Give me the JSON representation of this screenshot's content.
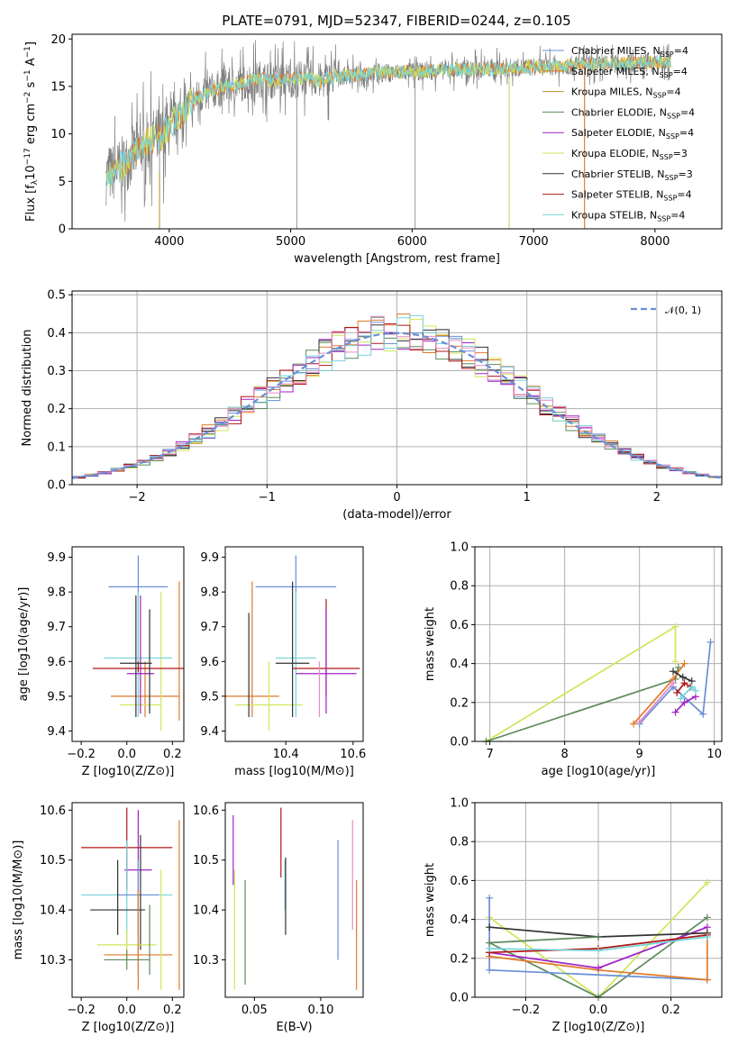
{
  "title": "PLATE=0791, MJD=52347, FIBERID=0244, z=0.105",
  "colors": {
    "chabrier_miles": "#6a8fd6",
    "salpeter_miles": "#e07a2a",
    "kroupa_miles": "#b5922e",
    "chabrier_elodie": "#5e8a5e",
    "salpeter_elodie": "#a020c8",
    "kroupa_elodie": "#cfe65a",
    "chabrier_stelib": "#333333",
    "salpeter_stelib": "#b01616",
    "kroupa_stelib": "#74d3dc",
    "pink": "#e58ac8",
    "data": "#7f7f7f",
    "grid": "#b0b0b0"
  },
  "chart_data": [
    {
      "type": "line",
      "panel": "spectrum",
      "xlabel": "wavelength [Angstrom, rest frame]",
      "ylabel": "Flux [f_λ 10^-17 erg cm^-2 s^-1 A^-1]",
      "xlim": [
        3200,
        8550
      ],
      "ylim": [
        0,
        20.5
      ],
      "xticks": [
        "4000",
        "5000",
        "6000",
        "7000",
        "8000"
      ],
      "yticks": [
        "0",
        "5",
        "10",
        "15",
        "20"
      ],
      "grid": false,
      "legend_position": "right",
      "legend": [
        {
          "label": "Chabrier MILES, N",
          "sub": "SSP",
          "value": "=4",
          "color": "chabrier_miles"
        },
        {
          "label": "Salpeter MILES, N",
          "sub": "SSP",
          "value": "=4",
          "color": "salpeter_miles"
        },
        {
          "label": "Kroupa MILES, N",
          "sub": "SSP",
          "value": "=4",
          "color": "kroupa_miles"
        },
        {
          "label": "Chabrier ELODIE, N",
          "sub": "SSP",
          "value": "=4",
          "color": "chabrier_elodie"
        },
        {
          "label": "Salpeter ELODIE, N",
          "sub": "SSP",
          "value": "=4",
          "color": "salpeter_elodie"
        },
        {
          "label": "Kroupa ELODIE, N",
          "sub": "SSP",
          "value": "=3",
          "color": "kroupa_elodie"
        },
        {
          "label": "Chabrier STELIB, N",
          "sub": "SSP",
          "value": "=3",
          "color": "chabrier_stelib"
        },
        {
          "label": "Salpeter STELIB, N",
          "sub": "SSP",
          "value": "=4",
          "color": "salpeter_stelib"
        },
        {
          "label": "Kroupa STELIB, N",
          "sub": "SSP",
          "value": "=4",
          "color": "kroupa_stelib"
        }
      ],
      "model_curve": {
        "x": [
          3480,
          3550,
          3650,
          3750,
          3850,
          3950,
          4050,
          4150,
          4250,
          4350,
          4450,
          4550,
          4650,
          4750,
          4850,
          4950,
          5050,
          5150,
          5250,
          5350,
          5500,
          5700,
          5900,
          6100,
          6300,
          6500,
          6700,
          6900,
          7100,
          7300,
          7500,
          7700,
          7900,
          8100
        ],
        "y": [
          5.6,
          6.0,
          7.0,
          8.5,
          9.5,
          9.8,
          11.5,
          13.0,
          14.0,
          14.5,
          15.0,
          15.2,
          15.5,
          15.8,
          15.6,
          15.7,
          15.8,
          16.0,
          15.5,
          16.0,
          16.2,
          16.4,
          16.5,
          16.6,
          16.7,
          16.8,
          16.9,
          17.0,
          17.1,
          17.2,
          17.3,
          17.4,
          17.5,
          17.6
        ]
      },
      "data_spikes": [
        {
          "x": 3920,
          "y_low": 0.0
        },
        {
          "x": 5050,
          "y_low": 0.0
        },
        {
          "x": 6025,
          "y_low": 0.0
        },
        {
          "x": 6800,
          "y_low": 0.0
        },
        {
          "x": 7420,
          "y_low": 0.0
        }
      ]
    },
    {
      "type": "step",
      "panel": "residual_histogram",
      "xlabel": "(data-model)/error",
      "ylabel": "Normed distribution",
      "xlim": [
        -2.5,
        2.5
      ],
      "ylim": [
        0,
        0.51
      ],
      "xticks": [
        "−2",
        "−1",
        "0",
        "1",
        "2"
      ],
      "yticks": [
        "0.0",
        "0.1",
        "0.2",
        "0.3",
        "0.4",
        "0.5"
      ],
      "grid": true,
      "legend_position": "top-right",
      "legend": [
        {
          "label": "𝒩(0, 1)",
          "color": "chabrier_miles",
          "style": "dashed"
        }
      ],
      "bin_edges_start": -2.5,
      "bin_width": 0.1,
      "bin_count": 50,
      "series_colors": [
        "chabrier_miles",
        "salpeter_miles",
        "chabrier_elodie",
        "salpeter_elodie",
        "kroupa_elodie",
        "chabrier_stelib",
        "salpeter_stelib",
        "kroupa_stelib",
        "pink"
      ]
    },
    {
      "type": "errorbar",
      "panel": "age_vs_Z",
      "xlabel": "Z [log10(Z/Z⊙)]",
      "ylabel": "age  [log10(age/yr)]",
      "xlim": [
        -0.24,
        0.25
      ],
      "ylim": [
        9.37,
        9.93
      ],
      "xticks": [
        "−0.2",
        "0.0",
        "0.2"
      ],
      "yticks": [
        "9.4",
        "9.5",
        "9.6",
        "9.7",
        "9.8",
        "9.9"
      ],
      "points": [
        {
          "x": 0.05,
          "y": 9.815,
          "xerr": 0.13,
          "ylo": 9.6,
          "yhi": 9.905,
          "color": "chabrier_miles"
        },
        {
          "x": 0.08,
          "y": 9.5,
          "xerr": 0.15,
          "ylo": 9.44,
          "yhi": 9.6,
          "color": "salpeter_miles"
        },
        {
          "x": 0.23,
          "y": 9.62,
          "xerr": 0.0,
          "ylo": 9.43,
          "yhi": 9.83,
          "color": "salpeter_miles"
        },
        {
          "x": 0.06,
          "y": 9.475,
          "xerr": 0.09,
          "ylo": 9.45,
          "yhi": 9.6,
          "color": "kroupa_elodie"
        },
        {
          "x": 0.15,
          "y": 9.6,
          "xerr": 0.0,
          "ylo": 9.4,
          "yhi": 9.8,
          "color": "kroupa_elodie"
        },
        {
          "x": 0.05,
          "y": 9.61,
          "xerr": 0.15,
          "ylo": 9.44,
          "yhi": 9.8,
          "color": "kroupa_stelib"
        },
        {
          "x": 0.05,
          "y": 9.58,
          "xerr": 0.2,
          "ylo": 9.57,
          "yhi": 9.6,
          "color": "salpeter_stelib"
        },
        {
          "x": 0.06,
          "y": 9.565,
          "xerr": 0.06,
          "ylo": 9.45,
          "yhi": 9.79,
          "color": "salpeter_elodie"
        },
        {
          "x": 0.04,
          "y": 9.595,
          "xerr": 0.07,
          "ylo": 9.44,
          "yhi": 9.79,
          "color": "chabrier_stelib"
        },
        {
          "x": 0.1,
          "y": 9.6,
          "xerr": 0.0,
          "ylo": 9.45,
          "yhi": 9.75,
          "color": "chabrier_stelib"
        }
      ]
    },
    {
      "type": "errorbar",
      "panel": "age_vs_mass",
      "xlabel": "mass [log10(M/M⊙)]",
      "xlim": [
        10.22,
        10.63
      ],
      "ylim": [
        9.37,
        9.93
      ],
      "xticks": [
        "10.4",
        "10.6"
      ],
      "yticks": [
        "9.4",
        "9.5",
        "9.6",
        "9.7",
        "9.8",
        "9.9"
      ],
      "points": [
        {
          "x": 10.43,
          "y": 9.815,
          "xerr": 0.12,
          "ylo": 9.6,
          "yhi": 9.905,
          "color": "chabrier_miles"
        },
        {
          "x": 10.3,
          "y": 9.5,
          "xerr": 0.08,
          "ylo": 9.44,
          "yhi": 9.83,
          "color": "salpeter_miles"
        },
        {
          "x": 10.35,
          "y": 9.475,
          "xerr": 0.1,
          "ylo": 9.4,
          "yhi": 9.6,
          "color": "kroupa_elodie"
        },
        {
          "x": 10.43,
          "y": 9.61,
          "xerr": 0.06,
          "ylo": 9.44,
          "yhi": 9.8,
          "color": "kroupa_stelib"
        },
        {
          "x": 10.52,
          "y": 9.58,
          "xerr": 0.1,
          "ylo": 9.5,
          "yhi": 9.78,
          "color": "salpeter_stelib"
        },
        {
          "x": 10.52,
          "y": 9.565,
          "xerr": 0.09,
          "ylo": 9.45,
          "yhi": 9.75,
          "color": "salpeter_elodie"
        },
        {
          "x": 10.42,
          "y": 9.595,
          "xerr": 0.05,
          "ylo": 9.44,
          "yhi": 9.83,
          "color": "chabrier_stelib"
        },
        {
          "x": 10.29,
          "y": 9.6,
          "xerr": 0.0,
          "ylo": 9.44,
          "yhi": 9.74,
          "color": "chabrier_stelib"
        },
        {
          "x": 10.5,
          "y": 9.5,
          "xerr": 0.0,
          "ylo": 9.44,
          "yhi": 9.6,
          "color": "pink"
        }
      ]
    },
    {
      "type": "line",
      "panel": "weight_vs_age",
      "xlabel": "age  [log10(age/yr)]",
      "ylabel": "mass weight",
      "xlim": [
        6.8,
        10.1
      ],
      "ylim": [
        0,
        1.0
      ],
      "xticks": [
        "7",
        "8",
        "9",
        "10"
      ],
      "yticks": [
        "0.0",
        "0.2",
        "0.4",
        "0.6",
        "0.8",
        "1.0"
      ],
      "grid": true,
      "series": [
        {
          "color": "kroupa_elodie",
          "x": [
            6.95,
            9.48,
            9.48
          ],
          "y": [
            0.0,
            0.59,
            0.41
          ]
        },
        {
          "color": "chabrier_elodie",
          "x": [
            6.95,
            9.48,
            9.52
          ],
          "y": [
            0.0,
            0.32,
            0.38
          ]
        },
        {
          "color": "chabrier_miles",
          "x": [
            9.0,
            9.45,
            9.85,
            9.95
          ],
          "y": [
            0.09,
            0.28,
            0.14,
            0.51
          ]
        },
        {
          "color": "salpeter_miles",
          "x": [
            8.92,
            9.45,
            9.6
          ],
          "y": [
            0.09,
            0.32,
            0.4
          ]
        },
        {
          "color": "salpeter_elodie",
          "x": [
            9.48,
            9.6,
            9.75
          ],
          "y": [
            0.15,
            0.2,
            0.23
          ]
        },
        {
          "color": "chabrier_stelib",
          "x": [
            9.45,
            9.58,
            9.7
          ],
          "y": [
            0.36,
            0.33,
            0.31
          ]
        },
        {
          "color": "salpeter_stelib",
          "x": [
            9.5,
            9.6,
            9.68
          ],
          "y": [
            0.25,
            0.3,
            0.28
          ]
        },
        {
          "color": "pink",
          "x": [
            9.0,
            9.45
          ],
          "y": [
            0.1,
            0.3
          ]
        },
        {
          "color": "kroupa_stelib",
          "x": [
            9.55,
            9.7,
            9.75
          ],
          "y": [
            0.22,
            0.28,
            0.26
          ]
        }
      ]
    },
    {
      "type": "errorbar",
      "panel": "mass_vs_Z",
      "xlabel": "Z [log10(Z/Z⊙)]",
      "ylabel": "mass [log10(M/M⊙)]",
      "xlim": [
        -0.24,
        0.25
      ],
      "ylim": [
        10.225,
        10.615
      ],
      "xticks": [
        "−0.2",
        "0.0",
        "0.2"
      ],
      "yticks": [
        "10.3",
        "10.4",
        "10.5",
        "10.6"
      ],
      "points": [
        {
          "x": 0.0,
          "y": 10.525,
          "xerr": 0.2,
          "ylo": 10.44,
          "yhi": 10.605,
          "color": "salpeter_stelib"
        },
        {
          "x": 0.05,
          "y": 10.48,
          "xerr": 0.06,
          "ylo": 10.35,
          "yhi": 10.6,
          "color": "salpeter_elodie"
        },
        {
          "x": 0.0,
          "y": 10.43,
          "xerr": 0.2,
          "ylo": 10.32,
          "yhi": 10.54,
          "color": "kroupa_stelib"
        },
        {
          "x": 0.05,
          "y": 10.43,
          "xerr": 0.09,
          "ylo": 10.27,
          "yhi": 10.5,
          "color": "chabrier_miles"
        },
        {
          "x": -0.04,
          "y": 10.4,
          "xerr": 0.12,
          "ylo": 10.35,
          "yhi": 10.5,
          "color": "chabrier_stelib"
        },
        {
          "x": 0.06,
          "y": 10.4,
          "xerr": 0.0,
          "ylo": 10.32,
          "yhi": 10.55,
          "color": "chabrier_stelib"
        },
        {
          "x": 0.0,
          "y": 10.33,
          "xerr": 0.13,
          "ylo": 10.3,
          "yhi": 10.36,
          "color": "kroupa_elodie"
        },
        {
          "x": 0.05,
          "y": 10.31,
          "xerr": 0.15,
          "ylo": 10.24,
          "yhi": 10.44,
          "color": "salpeter_miles"
        },
        {
          "x": 0.0,
          "y": 10.3,
          "xerr": 0.1,
          "ylo": 10.28,
          "yhi": 10.32,
          "color": "chabrier_elodie"
        },
        {
          "x": 0.23,
          "y": 10.42,
          "xerr": 0.0,
          "ylo": 10.24,
          "yhi": 10.58,
          "color": "salpeter_miles"
        },
        {
          "x": 0.15,
          "y": 10.4,
          "xerr": 0.0,
          "ylo": 10.24,
          "yhi": 10.48,
          "color": "kroupa_elodie"
        },
        {
          "x": 0.1,
          "y": 10.33,
          "xerr": 0.0,
          "ylo": 10.27,
          "yhi": 10.41,
          "color": "chabrier_elodie"
        }
      ]
    },
    {
      "type": "errorbar",
      "panel": "mass_vs_EBV",
      "xlabel": "E(B-V)",
      "xlim": [
        0.028,
        0.132
      ],
      "ylim": [
        10.225,
        10.615
      ],
      "xticks": [
        "0.05",
        "0.10"
      ],
      "yticks": [
        "10.3",
        "10.4",
        "10.5",
        "10.6"
      ],
      "points": [
        {
          "x": 0.034,
          "y": 10.5,
          "ylo": 10.45,
          "yhi": 10.59,
          "color": "salpeter_elodie"
        },
        {
          "x": 0.035,
          "y": 10.35,
          "ylo": 10.24,
          "yhi": 10.48,
          "color": "kroupa_elodie"
        },
        {
          "x": 0.043,
          "y": 10.35,
          "ylo": 10.25,
          "yhi": 10.46,
          "color": "chabrier_elodie"
        },
        {
          "x": 0.07,
          "y": 10.53,
          "ylo": 10.465,
          "yhi": 10.605,
          "color": "salpeter_stelib"
        },
        {
          "x": 0.073,
          "y": 10.43,
          "ylo": 10.4,
          "yhi": 10.5,
          "color": "kroupa_stelib"
        },
        {
          "x": 0.0735,
          "y": 10.43,
          "ylo": 10.35,
          "yhi": 10.505,
          "color": "chabrier_stelib"
        },
        {
          "x": 0.113,
          "y": 10.42,
          "ylo": 10.3,
          "yhi": 10.54,
          "color": "chabrier_miles"
        },
        {
          "x": 0.124,
          "y": 10.47,
          "ylo": 10.36,
          "yhi": 10.58,
          "color": "pink"
        },
        {
          "x": 0.127,
          "y": 10.35,
          "ylo": 10.24,
          "yhi": 10.46,
          "color": "salpeter_miles"
        }
      ]
    },
    {
      "type": "line",
      "panel": "weight_vs_Z",
      "xlabel": "Z [log10(Z/Z⊙)]",
      "ylabel": "mass weight",
      "xlim": [
        -0.34,
        0.34
      ],
      "ylim": [
        0,
        1.0
      ],
      "xticks": [
        "−0.2",
        "0.0",
        "0.2"
      ],
      "yticks": [
        "0.0",
        "0.2",
        "0.4",
        "0.6",
        "0.8",
        "1.0"
      ],
      "grid": true,
      "series": [
        {
          "color": "kroupa_elodie",
          "x": [
            -0.3,
            0.0,
            0.3
          ],
          "y": [
            0.41,
            0.0,
            0.59
          ]
        },
        {
          "color": "chabrier_elodie",
          "x": [
            -0.3,
            0.0,
            0.3
          ],
          "y": [
            0.28,
            0.0,
            0.41
          ]
        },
        {
          "color": "chabrier_miles",
          "x": [
            -0.3,
            -0.3,
            0.3
          ],
          "y": [
            0.51,
            0.14,
            0.09
          ]
        },
        {
          "color": "salpeter_miles",
          "x": [
            -0.3,
            0.0,
            0.3,
            0.3
          ],
          "y": [
            0.21,
            0.14,
            0.09,
            0.33
          ]
        },
        {
          "color": "salpeter_elodie",
          "x": [
            -0.3,
            0.0,
            0.3
          ],
          "y": [
            0.23,
            0.15,
            0.36
          ]
        },
        {
          "color": "chabrier_stelib",
          "x": [
            -0.3,
            0.0,
            0.3
          ],
          "y": [
            0.36,
            0.31,
            0.33
          ]
        },
        {
          "color": "salpeter_stelib",
          "x": [
            -0.3,
            0.0,
            0.3
          ],
          "y": [
            0.23,
            0.25,
            0.32
          ]
        },
        {
          "color": "kroupa_stelib",
          "x": [
            -0.3,
            0.0,
            0.3
          ],
          "y": [
            0.25,
            0.24,
            0.31
          ]
        },
        {
          "color": "chabrier_elodie",
          "x": [
            -0.3,
            0.0
          ],
          "y": [
            0.28,
            0.31
          ]
        }
      ]
    }
  ]
}
